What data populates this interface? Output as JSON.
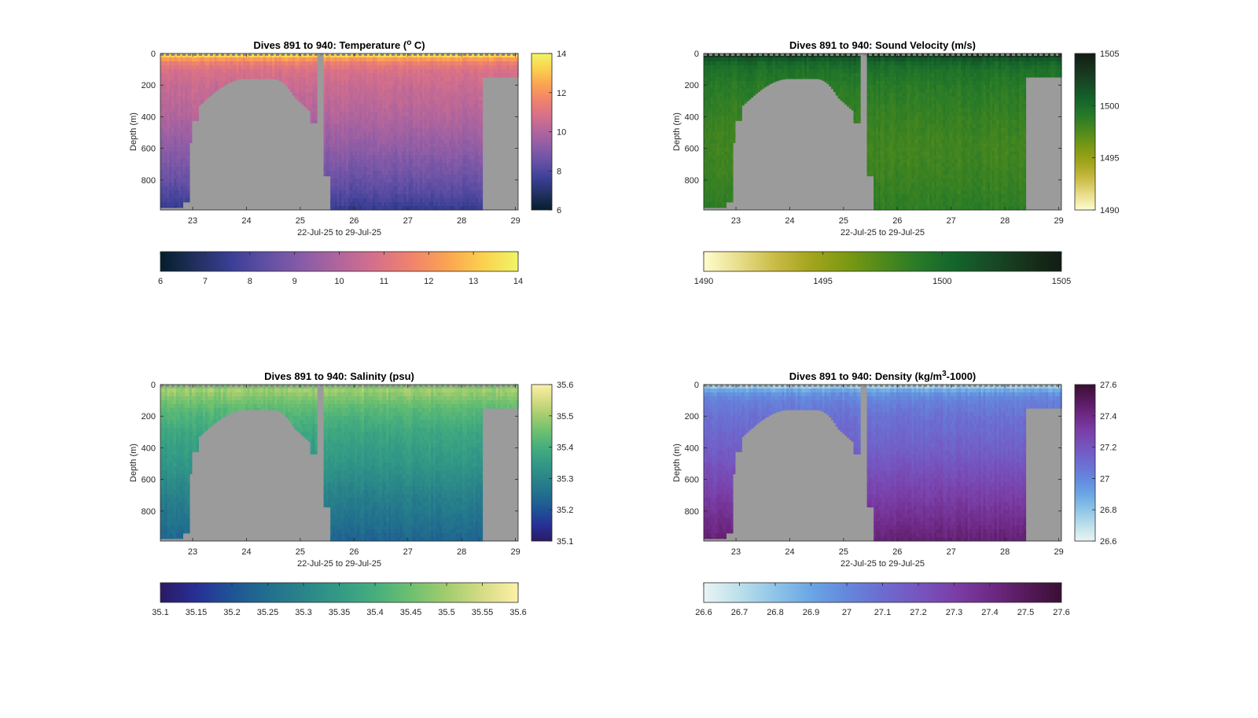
{
  "figure": {
    "background": "#ffffff",
    "land_color": "#9b9b9b",
    "dive_start": 891,
    "dive_end": 940
  },
  "chart_data": [
    {
      "id": "temperature",
      "type": "heatmap",
      "title": "Dives 891 to 940: Temperature (",
      "title_sup": "o",
      "title_post": " C)",
      "xlabel": "22-Jul-25 to 29-Jul-25",
      "ylabel": "Depth (m)",
      "xlim": [
        22.4,
        29.05
      ],
      "ylim": [
        0,
        990
      ],
      "xticks": [
        "23",
        "24",
        "25",
        "26",
        "27",
        "28",
        "29"
      ],
      "yticks": [
        "0",
        "200",
        "400",
        "600",
        "800"
      ],
      "clim": [
        6,
        14
      ],
      "colorbar_ticks": [
        "6",
        "8",
        "10",
        "12",
        "14"
      ],
      "hcolorbar_ticks": [
        "6",
        "7",
        "8",
        "9",
        "10",
        "11",
        "12",
        "13",
        "14"
      ],
      "colormap": [
        "#041f2c",
        "#21305f",
        "#3b3f96",
        "#6350a5",
        "#8a5ca7",
        "#b1659d",
        "#d6708a",
        "#f0826d",
        "#fba352",
        "#fbd04e",
        "#f0f566"
      ],
      "profile": [
        [
          0,
          13.8
        ],
        [
          20,
          12.9
        ],
        [
          50,
          11.6
        ],
        [
          100,
          10.9
        ],
        [
          200,
          10.5
        ],
        [
          400,
          10.0
        ],
        [
          600,
          9.3
        ],
        [
          800,
          8.5
        ],
        [
          900,
          8.0
        ],
        [
          990,
          7.4
        ]
      ]
    },
    {
      "id": "sound_velocity",
      "type": "heatmap",
      "title": "Dives 891 to 940: Sound Velocity (m/s)",
      "title_sup": "",
      "title_post": "",
      "xlabel": "22-Jul-25 to 29-Jul-25",
      "ylabel": "Depth (m)",
      "xlim": [
        22.4,
        29.05
      ],
      "ylim": [
        0,
        990
      ],
      "xticks": [
        "23",
        "24",
        "25",
        "26",
        "27",
        "28",
        "29"
      ],
      "yticks": [
        "0",
        "200",
        "400",
        "600",
        "800"
      ],
      "clim": [
        1490,
        1505
      ],
      "colorbar_ticks": [
        "1490",
        "1495",
        "1500",
        "1505"
      ],
      "hcolorbar_ticks": [
        "1490",
        "1495",
        "1500",
        "1505"
      ],
      "colormap": [
        "#fefccd",
        "#e8dd8a",
        "#c9bb45",
        "#a3a41c",
        "#7b9a12",
        "#4f8a1c",
        "#287a28",
        "#14652b",
        "#174b26",
        "#17331c",
        "#111d14"
      ],
      "profile": [
        [
          0,
          1504.5
        ],
        [
          20,
          1502.0
        ],
        [
          50,
          1500.6
        ],
        [
          100,
          1499.7
        ],
        [
          200,
          1499.0
        ],
        [
          400,
          1498.4
        ],
        [
          600,
          1498.0
        ],
        [
          800,
          1498.3
        ],
        [
          990,
          1498.8
        ]
      ]
    },
    {
      "id": "salinity",
      "type": "heatmap",
      "title": "Dives 891 to 940: Salinity (psu)",
      "title_sup": "",
      "title_post": "",
      "xlabel": "22-Jul-25 to 29-Jul-25",
      "ylabel": "Depth (m)",
      "xlim": [
        22.4,
        29.05
      ],
      "ylim": [
        0,
        990
      ],
      "xticks": [
        "23",
        "24",
        "25",
        "26",
        "27",
        "28",
        "29"
      ],
      "yticks": [
        "0",
        "200",
        "400",
        "600",
        "800"
      ],
      "clim": [
        35.1,
        35.6
      ],
      "colorbar_ticks": [
        "35.1",
        "35.2",
        "35.3",
        "35.4",
        "35.5",
        "35.6"
      ],
      "hcolorbar_ticks": [
        "35.1",
        "35.15",
        "35.2",
        "35.25",
        "35.3",
        "35.35",
        "35.4",
        "35.45",
        "35.5",
        "35.55",
        "35.6"
      ],
      "colormap": [
        "#2b1a66",
        "#272f95",
        "#1e5495",
        "#216f8e",
        "#2a8589",
        "#339a86",
        "#46ae7d",
        "#6dc06f",
        "#a3cc6f",
        "#d5dc85",
        "#fdf0a8"
      ],
      "profile": [
        [
          0,
          35.44
        ],
        [
          30,
          35.5
        ],
        [
          80,
          35.47
        ],
        [
          150,
          35.43
        ],
        [
          300,
          35.38
        ],
        [
          500,
          35.34
        ],
        [
          700,
          35.29
        ],
        [
          850,
          35.26
        ],
        [
          990,
          35.23
        ]
      ]
    },
    {
      "id": "density",
      "type": "heatmap",
      "title": "Dives 891 to 940: Density (kg/m",
      "title_sup": "3",
      "title_post": "-1000)",
      "xlabel": "22-Jul-25 to 29-Jul-25",
      "ylabel": "Depth (m)",
      "xlim": [
        22.4,
        29.05
      ],
      "ylim": [
        0,
        990
      ],
      "xticks": [
        "23",
        "24",
        "25",
        "26",
        "27",
        "28",
        "29"
      ],
      "yticks": [
        "0",
        "200",
        "400",
        "600",
        "800"
      ],
      "clim": [
        26.6,
        27.6
      ],
      "colorbar_ticks": [
        "26.6",
        "26.8",
        "27",
        "27.2",
        "27.4",
        "27.6"
      ],
      "hcolorbar_ticks": [
        "26.6",
        "26.7",
        "26.8",
        "26.9",
        "27",
        "27.1",
        "27.2",
        "27.3",
        "27.4",
        "27.5",
        "27.6"
      ],
      "colormap": [
        "#e9f4f4",
        "#bce0ea",
        "#8fc4e8",
        "#6aa6e4",
        "#6487dc",
        "#6c6cd0",
        "#7655bf",
        "#7a3fa8",
        "#6f2a86",
        "#561a5c",
        "#3a0f33"
      ],
      "profile": [
        [
          0,
          26.7
        ],
        [
          20,
          26.82
        ],
        [
          50,
          26.95
        ],
        [
          100,
          27.02
        ],
        [
          200,
          27.08
        ],
        [
          400,
          27.15
        ],
        [
          600,
          27.25
        ],
        [
          800,
          27.35
        ],
        [
          990,
          27.45
        ]
      ]
    }
  ]
}
